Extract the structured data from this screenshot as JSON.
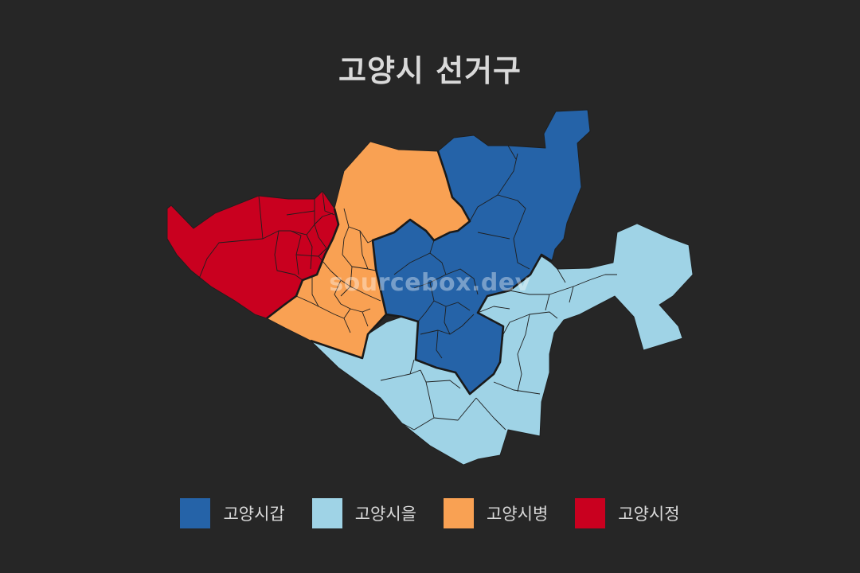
{
  "title": "고양시 선거구",
  "watermark": "sourcebox.dev",
  "legend": [
    {
      "label": "고양시갑",
      "color": "#2563a8"
    },
    {
      "label": "고양시을",
      "color": "#9fd3e6"
    },
    {
      "label": "고양시병",
      "color": "#f9a153"
    },
    {
      "label": "고양시정",
      "color": "#c9001f"
    }
  ]
}
